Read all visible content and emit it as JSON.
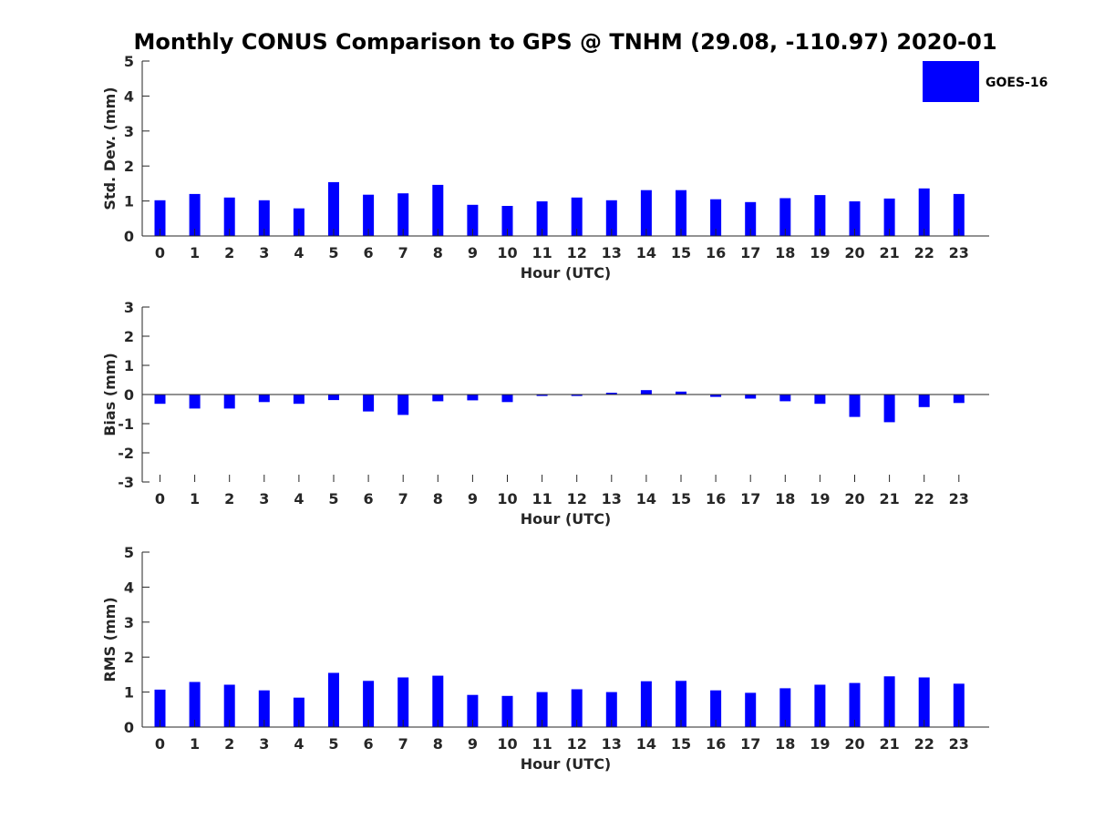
{
  "title": "Monthly CONUS Comparison to GPS @ TNHM (29.08, -110.97) 2020-01",
  "legend": {
    "label": "GOES-16",
    "color": "#0000ff"
  },
  "chart_data": [
    {
      "type": "bar",
      "id": "std",
      "title": "",
      "xlabel": "Hour (UTC)",
      "ylabel": "Std. Dev. (mm)",
      "ylim": [
        0,
        5
      ],
      "yticks": [
        "0",
        "1",
        "2",
        "3",
        "4",
        "5"
      ],
      "categories": [
        "0",
        "1",
        "2",
        "3",
        "4",
        "5",
        "6",
        "7",
        "8",
        "9",
        "10",
        "11",
        "12",
        "13",
        "14",
        "15",
        "16",
        "17",
        "18",
        "19",
        "20",
        "21",
        "22",
        "23"
      ],
      "series": [
        {
          "name": "GOES-16",
          "values": [
            1.02,
            1.2,
            1.1,
            1.02,
            0.79,
            1.54,
            1.18,
            1.22,
            1.46,
            0.89,
            0.86,
            0.99,
            1.1,
            1.02,
            1.31,
            1.31,
            1.05,
            0.97,
            1.08,
            1.17,
            0.99,
            1.07,
            1.36,
            1.2
          ]
        }
      ]
    },
    {
      "type": "bar",
      "id": "bias",
      "title": "",
      "xlabel": "Hour (UTC)",
      "ylabel": "Bias (mm)",
      "ylim": [
        -3,
        3
      ],
      "yticks": [
        "-3",
        "-2",
        "-1",
        "0",
        "1",
        "2",
        "3"
      ],
      "categories": [
        "0",
        "1",
        "2",
        "3",
        "4",
        "5",
        "6",
        "7",
        "8",
        "9",
        "10",
        "11",
        "12",
        "13",
        "14",
        "15",
        "16",
        "17",
        "18",
        "19",
        "20",
        "21",
        "22",
        "23"
      ],
      "series": [
        {
          "name": "GOES-16",
          "values": [
            -0.32,
            -0.48,
            -0.48,
            -0.26,
            -0.32,
            -0.19,
            -0.58,
            -0.7,
            -0.23,
            -0.2,
            -0.26,
            -0.05,
            -0.05,
            0.06,
            0.15,
            0.1,
            -0.08,
            -0.14,
            -0.23,
            -0.32,
            -0.77,
            -0.95,
            -0.43,
            -0.29
          ]
        }
      ]
    },
    {
      "type": "bar",
      "id": "rms",
      "title": "",
      "xlabel": "Hour (UTC)",
      "ylabel": "RMS (mm)",
      "ylim": [
        0,
        5
      ],
      "yticks": [
        "0",
        "1",
        "2",
        "3",
        "4",
        "5"
      ],
      "categories": [
        "0",
        "1",
        "2",
        "3",
        "4",
        "5",
        "6",
        "7",
        "8",
        "9",
        "10",
        "11",
        "12",
        "13",
        "14",
        "15",
        "16",
        "17",
        "18",
        "19",
        "20",
        "21",
        "22",
        "23"
      ],
      "series": [
        {
          "name": "GOES-16",
          "values": [
            1.07,
            1.29,
            1.21,
            1.05,
            0.84,
            1.55,
            1.32,
            1.42,
            1.47,
            0.92,
            0.89,
            1.0,
            1.08,
            1.0,
            1.31,
            1.32,
            1.05,
            0.98,
            1.11,
            1.21,
            1.26,
            1.45,
            1.42,
            1.24
          ]
        }
      ]
    }
  ]
}
